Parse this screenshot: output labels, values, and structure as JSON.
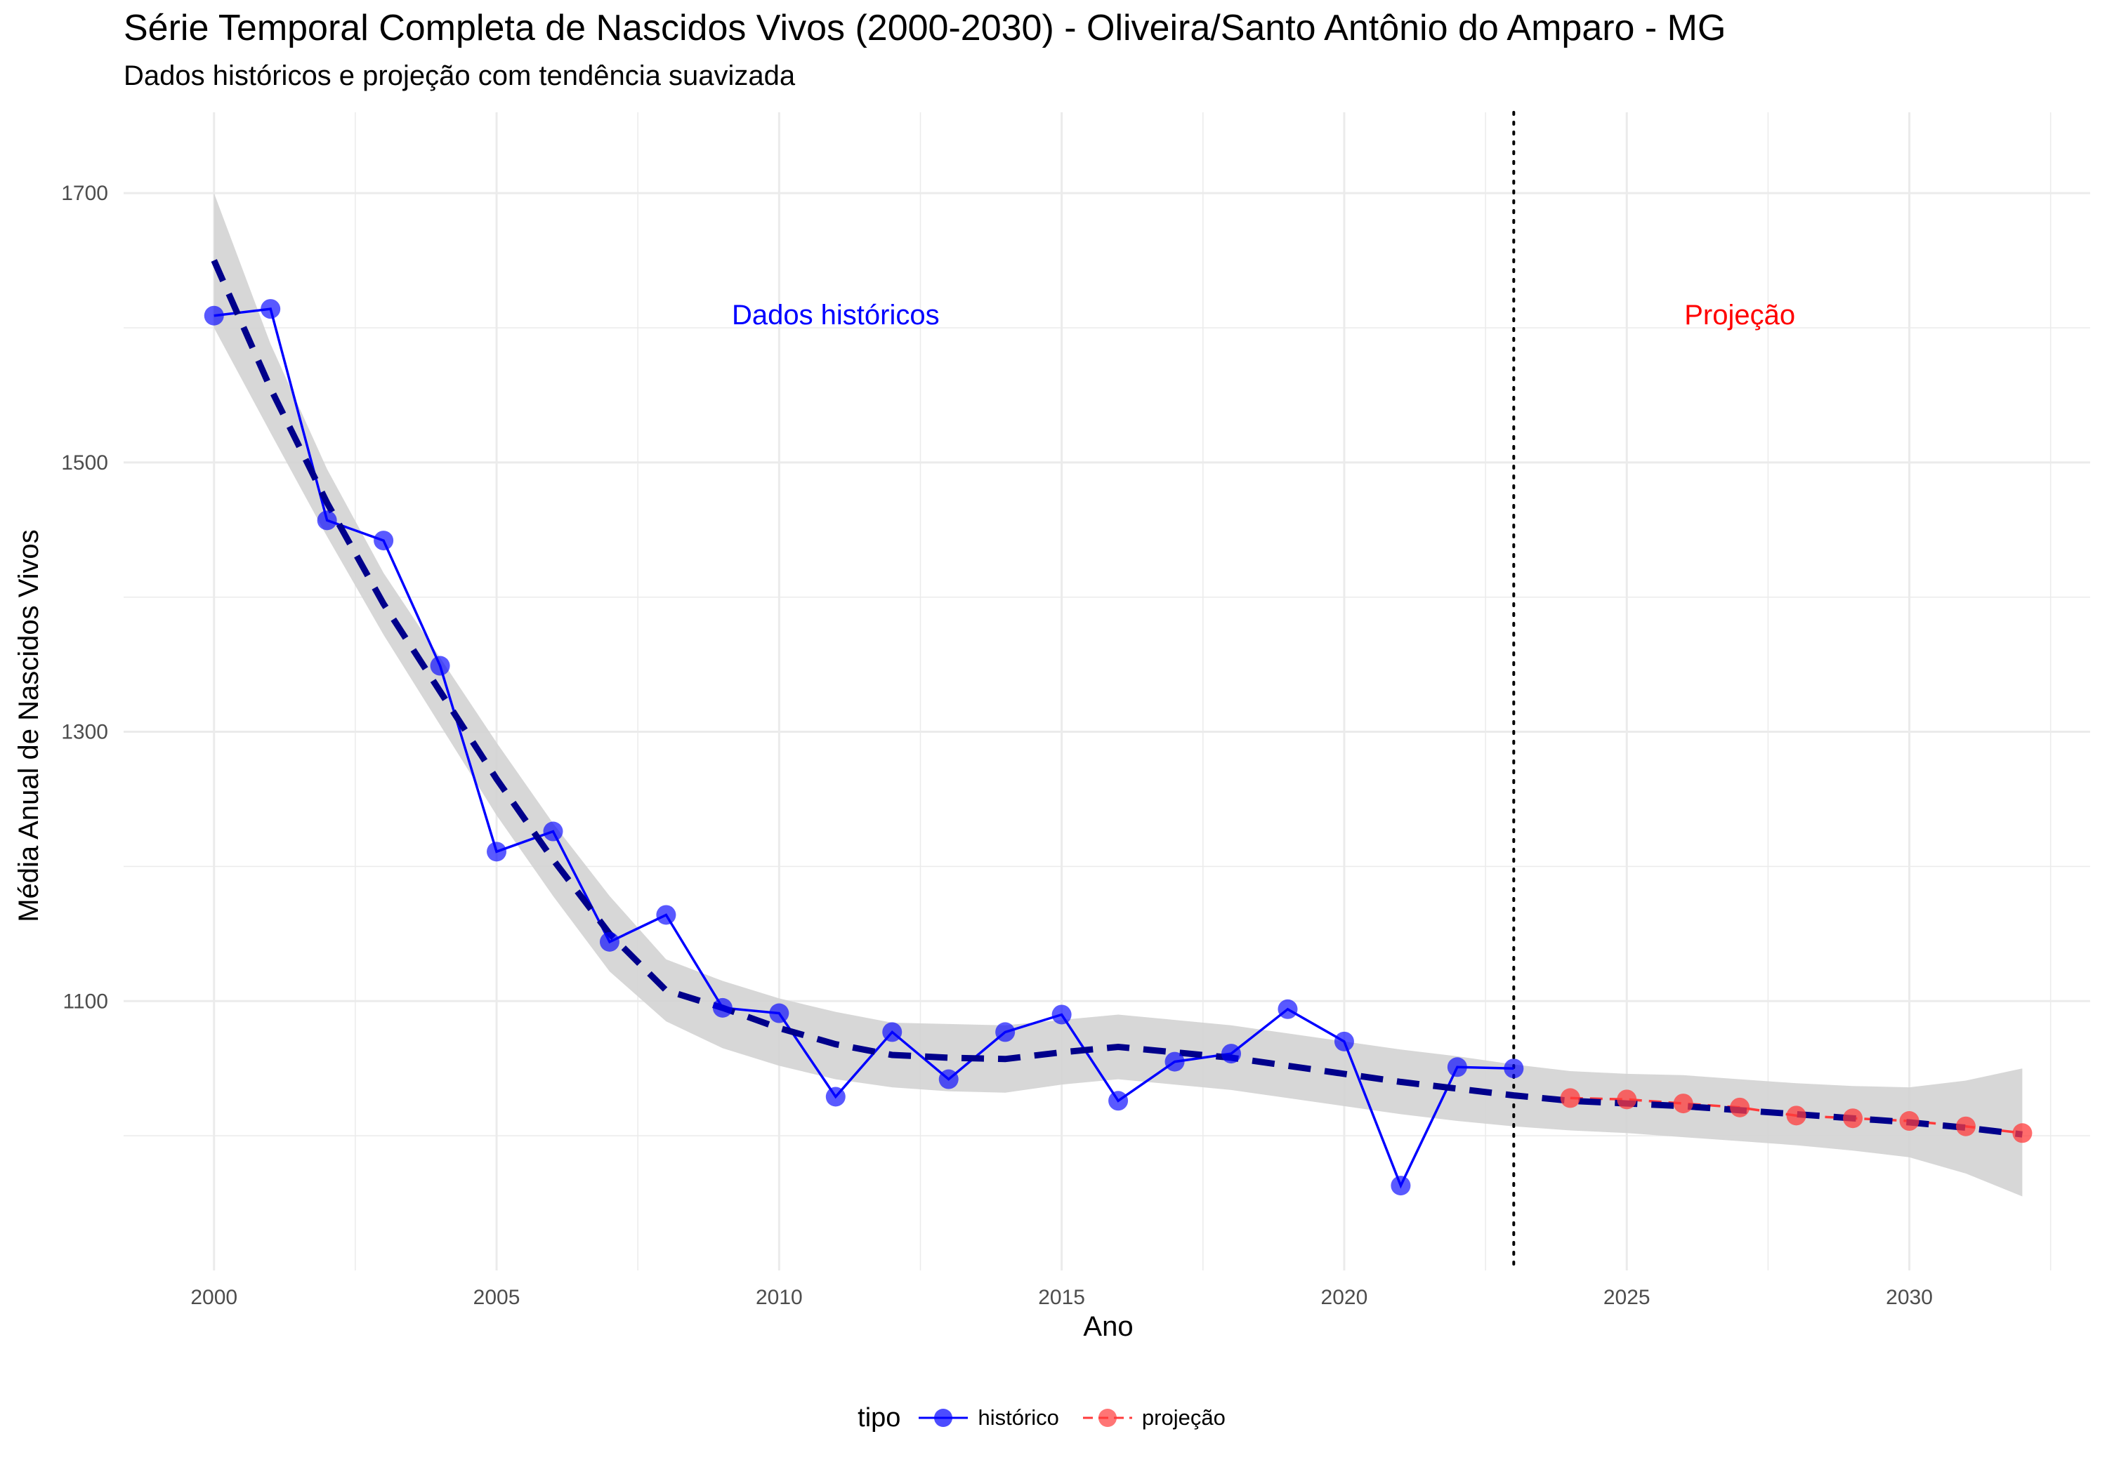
{
  "title": "Série Temporal Completa de Nascidos Vivos (2000-2030) -  Oliveira/Santo Antônio do Amparo - MG",
  "subtitle": "Dados históricos e projeção com tendência suavizada",
  "colors": {
    "historico": "#0000ff",
    "projecao": "#ff3b3b",
    "trend": "#00008b",
    "band": "#d3d3d3",
    "grid": "#ebebeb",
    "vline": "#000000"
  },
  "chart_data": {
    "type": "line",
    "xlabel": "Ano",
    "ylabel": "Média Anual de Nascidos Vivos",
    "xlim": [
      1998.4,
      2033.2
    ],
    "ylim": [
      900,
      1760
    ],
    "x_ticks": [
      2000,
      2005,
      2010,
      2015,
      2020,
      2025,
      2030
    ],
    "y_ticks": [
      1100,
      1300,
      1500,
      1700
    ],
    "grid": true,
    "legend_position": "bottom",
    "legend_title": "tipo",
    "series": [
      {
        "name": "histórico",
        "x": [
          2000,
          2001,
          2002,
          2003,
          2004,
          2005,
          2006,
          2007,
          2008,
          2009,
          2010,
          2011,
          2012,
          2013,
          2014,
          2015,
          2016,
          2017,
          2018,
          2019,
          2020,
          2021,
          2022,
          2023
        ],
        "y": [
          1609,
          1614,
          1457,
          1442,
          1349,
          1211,
          1226,
          1144,
          1164,
          1095,
          1091,
          1029,
          1077,
          1042,
          1077,
          1090,
          1026,
          1055,
          1061,
          1094,
          1070,
          963,
          1051,
          1050
        ]
      },
      {
        "name": "projeção",
        "x": [
          2024,
          2025,
          2026,
          2027,
          2028,
          2029,
          2030,
          2031,
          2032
        ],
        "y": [
          1028,
          1027,
          1024,
          1021,
          1015,
          1013,
          1011,
          1007,
          1002
        ]
      }
    ],
    "trend": {
      "x": [
        2000,
        2001,
        2002,
        2003,
        2004,
        2005,
        2006,
        2007,
        2008,
        2009,
        2010,
        2011,
        2012,
        2013,
        2014,
        2015,
        2016,
        2017,
        2018,
        2019,
        2020,
        2021,
        2022,
        2023,
        2024,
        2025,
        2026,
        2027,
        2028,
        2029,
        2030,
        2031,
        2032
      ],
      "y": [
        1650,
        1555,
        1470,
        1395,
        1330,
        1265,
        1205,
        1150,
        1108,
        1095,
        1080,
        1068,
        1060,
        1058,
        1057,
        1062,
        1066,
        1062,
        1058,
        1052,
        1046,
        1040,
        1035,
        1030,
        1026,
        1024,
        1022,
        1019,
        1016,
        1013,
        1010,
        1006,
        1001
      ],
      "lower": [
        1600,
        1522,
        1445,
        1372,
        1305,
        1238,
        1178,
        1122,
        1085,
        1065,
        1052,
        1042,
        1036,
        1033,
        1032,
        1038,
        1042,
        1038,
        1034,
        1028,
        1022,
        1016,
        1011,
        1007,
        1004,
        1002,
        999,
        996,
        993,
        989,
        984,
        972,
        955
      ],
      "upper": [
        1700,
        1588,
        1495,
        1418,
        1355,
        1292,
        1232,
        1178,
        1131,
        1115,
        1102,
        1092,
        1084,
        1083,
        1082,
        1086,
        1090,
        1086,
        1082,
        1076,
        1070,
        1064,
        1059,
        1053,
        1048,
        1046,
        1045,
        1042,
        1039,
        1037,
        1036,
        1041,
        1050
      ]
    },
    "vline_x": 2023,
    "annotations": [
      {
        "text": "Dados históricos",
        "x": 2011,
        "y": 1610,
        "color": "#0000ff"
      },
      {
        "text": "Projeção",
        "x": 2027,
        "y": 1610,
        "color": "#ff0000"
      }
    ]
  },
  "legend": {
    "title": "tipo",
    "items": [
      {
        "label": "histórico",
        "color": "#0000ff"
      },
      {
        "label": "projeção",
        "color": "#ff3b3b"
      }
    ]
  }
}
